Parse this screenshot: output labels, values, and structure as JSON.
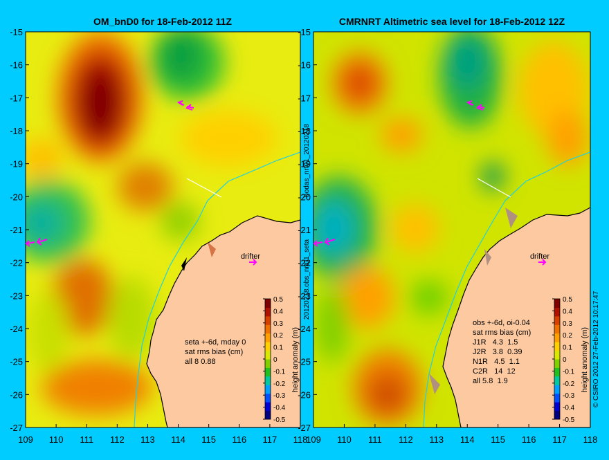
{
  "left_panel": {
    "title": "OM_bnD0 for 18-Feb-2012 11Z",
    "stats": [
      "seta +-6d, mday 0",
      "sat rms bias (cm)",
      "all 8 0.88"
    ],
    "drifter_label": "drifter"
  },
  "right_panel": {
    "title": "CMRNRT Altimetric sea level  for 18-Feb-2012 12Z",
    "stats": [
      "obs +-6d, oi-0.04",
      "sat rms bias (cm)",
      "J1R   4.3  1.5",
      "J2R   3.8  0.39",
      "N1R   4.5  1.1",
      "C2R   14  12",
      "all 5.8  1.9"
    ],
    "drifter_label": "drifter"
  },
  "lat_ticks": [
    "-15",
    "-16",
    "-17",
    "-18",
    "-19",
    "-20",
    "-21",
    "-22",
    "-23",
    "-24",
    "-25",
    "-26",
    "-27"
  ],
  "lon_ticks": [
    "109",
    "110",
    "111",
    "112",
    "113",
    "114",
    "115",
    "116",
    "117",
    "118"
  ],
  "colorbar": {
    "ticks": [
      "0.5",
      "0.4",
      "0.3",
      "0.2",
      "0.1",
      "0",
      "-0.1",
      "-0.2",
      "-0.3",
      "-0.4",
      "-0.5"
    ],
    "label": "height anomaly (m)",
    "colors": [
      "#000080",
      "#0000d0",
      "#0050ff",
      "#00a0ff",
      "#00c8a0",
      "#20c020",
      "#80d000",
      "#d8e800",
      "#ffd000",
      "#ffa000",
      "#f07000",
      "#d84000",
      "#b01000",
      "#800000"
    ]
  },
  "side_text": {
    "middle_top": "bodas_nrt01_20120218",
    "middle_bottom": "20120218.obs_nrt01_seta",
    "credit": "© CSIRO 2012   27-Feb-2012 10:17:47"
  },
  "colors": {
    "background": "#00ccff",
    "land": "#fcc9a0",
    "coast": "#000000",
    "isobath": "#22d0e0",
    "drifter": "#ff00ff"
  }
}
